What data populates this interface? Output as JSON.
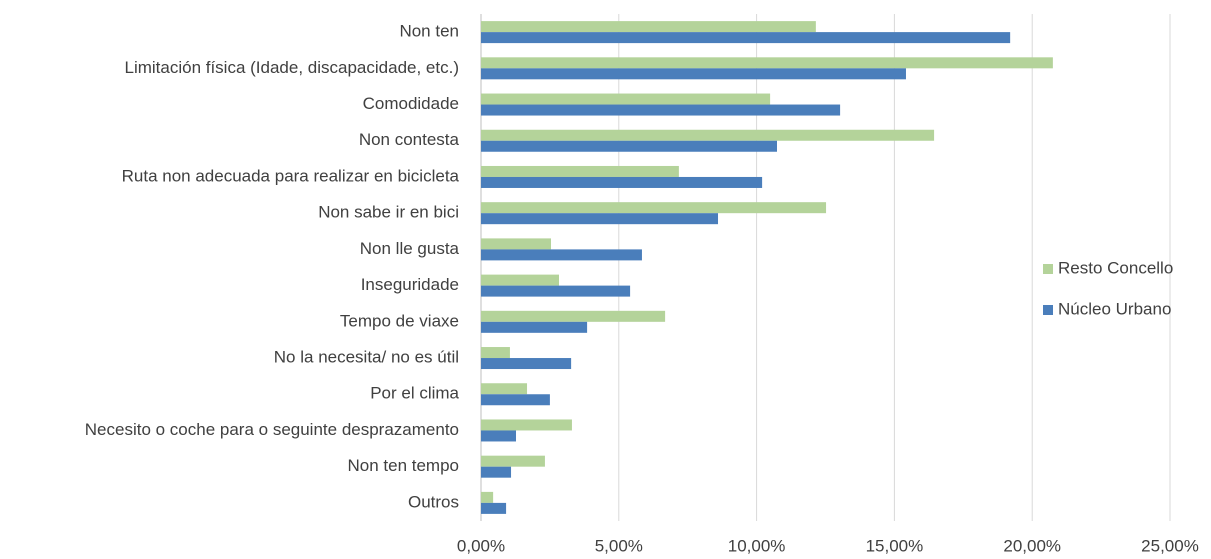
{
  "chart_data": {
    "type": "barh",
    "categories": [
      "Non  ten",
      "Limitación física (Idade, discapacidade, etc.)",
      "Comodidade",
      "Non contesta",
      "Ruta non adecuada para realizar en bicicleta",
      "Non sabe ir en bici",
      "Non lle gusta",
      "Inseguridade",
      "Tempo de viaxe",
      "No la necesita/ no es útil",
      "Por el clima",
      "Necesito o coche para o seguinte desprazamento",
      "Non ten tempo",
      "Outros"
    ],
    "series": [
      {
        "name": "Resto Concello",
        "color": "#b4d39a",
        "values": [
          12.15,
          20.75,
          10.49,
          16.44,
          7.18,
          12.52,
          2.54,
          2.83,
          6.68,
          1.05,
          1.67,
          3.3,
          2.32,
          0.44
        ]
      },
      {
        "name": "Núcleo Urbano",
        "color": "#4a7ebb",
        "values": [
          19.2,
          15.42,
          13.03,
          10.74,
          10.2,
          8.6,
          5.84,
          5.41,
          3.85,
          3.27,
          2.5,
          1.27,
          1.09,
          0.91
        ]
      }
    ],
    "xlim": [
      0,
      25
    ],
    "xticks": [
      {
        "value": 0,
        "label": "0,00%"
      },
      {
        "value": 5,
        "label": "5,00%"
      },
      {
        "value": 10,
        "label": "10,00%"
      },
      {
        "value": 15,
        "label": "15,00%"
      },
      {
        "value": 20,
        "label": "20,00%"
      },
      {
        "value": 25,
        "label": "25,00%"
      }
    ],
    "grid": true,
    "legend": "right"
  }
}
